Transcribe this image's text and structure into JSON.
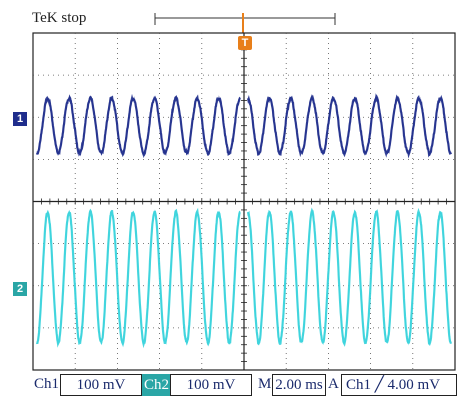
{
  "header": {
    "title": "TeK stop",
    "trigger_marker_label": "T"
  },
  "channels": {
    "ch1_marker": "1",
    "ch2_marker": "2"
  },
  "status_bar": {
    "ch1_label": "Ch1",
    "ch1_scale": "100 mV",
    "ch2_label": "Ch2",
    "ch2_scale": "100 mV",
    "m_label": "M",
    "timebase": "2.00 ms",
    "a_label": "A",
    "trig_channel": "Ch1",
    "trig_level": "4.00 mV"
  },
  "colors": {
    "ch1": "#1f2d8c",
    "ch2": "#39d3dc",
    "grid": "#222222",
    "trigger": "#e87f1a"
  },
  "chart_data": {
    "type": "line",
    "title": "",
    "xlabel": "",
    "ylabel": "",
    "grid": true,
    "divisions_x": 10,
    "divisions_y": 8,
    "x_per_div_ms": 2.0,
    "xlim": [
      0,
      20
    ],
    "series": [
      {
        "name": "Ch1",
        "amplitude_div": 0.65,
        "offset_div": 1.8,
        "cycles_left": 9.5,
        "cycles_right": 9.5,
        "unit_per_div": "100 mV"
      },
      {
        "name": "Ch2",
        "amplitude_div": 1.55,
        "offset_div": -1.8,
        "cycles_left": 9.5,
        "cycles_right": 9.5,
        "unit_per_div": "100 mV"
      }
    ]
  }
}
